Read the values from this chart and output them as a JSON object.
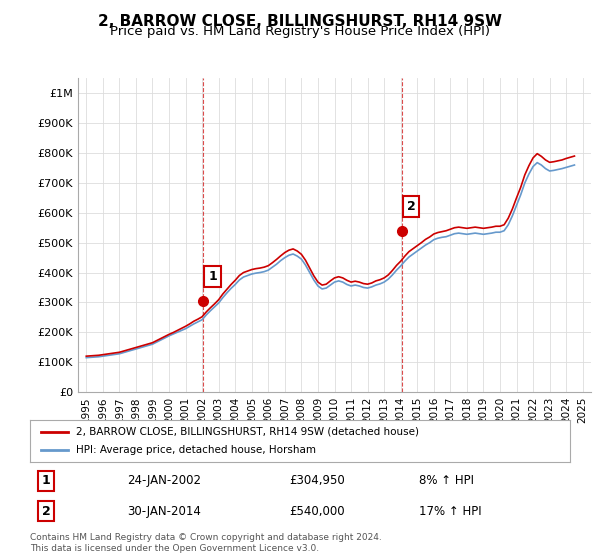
{
  "title": "2, BARROW CLOSE, BILLINGSHURST, RH14 9SW",
  "subtitle": "Price paid vs. HM Land Registry's House Price Index (HPI)",
  "title_fontsize": 11,
  "subtitle_fontsize": 9.5,
  "xlim": [
    1994.5,
    2025.5
  ],
  "ylim": [
    0,
    1050000
  ],
  "yticks": [
    0,
    100000,
    200000,
    300000,
    400000,
    500000,
    600000,
    700000,
    800000,
    900000,
    1000000
  ],
  "ytick_labels": [
    "£0",
    "£100K",
    "£200K",
    "£300K",
    "£400K",
    "£500K",
    "£600K",
    "£700K",
    "£800K",
    "£900K",
    "£1M"
  ],
  "xticks": [
    1995,
    1996,
    1997,
    1998,
    1999,
    2000,
    2001,
    2002,
    2003,
    2004,
    2005,
    2006,
    2007,
    2008,
    2009,
    2010,
    2011,
    2012,
    2013,
    2014,
    2015,
    2016,
    2017,
    2018,
    2019,
    2020,
    2021,
    2022,
    2023,
    2024,
    2025
  ],
  "sale1_x": 2002.07,
  "sale1_y": 304950,
  "sale1_label": "1",
  "sale2_x": 2014.08,
  "sale2_y": 540000,
  "sale2_label": "2",
  "red_line_color": "#cc0000",
  "blue_line_color": "#6699cc",
  "annotation_box_color": "#cc0000",
  "grid_color": "#dddddd",
  "bg_color": "#ffffff",
  "legend_line1": "2, BARROW CLOSE, BILLINGSHURST, RH14 9SW (detached house)",
  "legend_line2": "HPI: Average price, detached house, Horsham",
  "table_row1": [
    "1",
    "24-JAN-2002",
    "£304,950",
    "8% ↑ HPI"
  ],
  "table_row2": [
    "2",
    "30-JAN-2014",
    "£540,000",
    "17% ↑ HPI"
  ],
  "footnote": "Contains HM Land Registry data © Crown copyright and database right 2024.\nThis data is licensed under the Open Government Licence v3.0.",
  "hpi_data_x": [
    1995.0,
    1995.25,
    1995.5,
    1995.75,
    1996.0,
    1996.25,
    1996.5,
    1996.75,
    1997.0,
    1997.25,
    1997.5,
    1997.75,
    1998.0,
    1998.25,
    1998.5,
    1998.75,
    1999.0,
    1999.25,
    1999.5,
    1999.75,
    2000.0,
    2000.25,
    2000.5,
    2000.75,
    2001.0,
    2001.25,
    2001.5,
    2001.75,
    2002.0,
    2002.25,
    2002.5,
    2002.75,
    2003.0,
    2003.25,
    2003.5,
    2003.75,
    2004.0,
    2004.25,
    2004.5,
    2004.75,
    2005.0,
    2005.25,
    2005.5,
    2005.75,
    2006.0,
    2006.25,
    2006.5,
    2006.75,
    2007.0,
    2007.25,
    2007.5,
    2007.75,
    2008.0,
    2008.25,
    2008.5,
    2008.75,
    2009.0,
    2009.25,
    2009.5,
    2009.75,
    2010.0,
    2010.25,
    2010.5,
    2010.75,
    2011.0,
    2011.25,
    2011.5,
    2011.75,
    2012.0,
    2012.25,
    2012.5,
    2012.75,
    2013.0,
    2013.25,
    2013.5,
    2013.75,
    2014.0,
    2014.25,
    2014.5,
    2014.75,
    2015.0,
    2015.25,
    2015.5,
    2015.75,
    2016.0,
    2016.25,
    2016.5,
    2016.75,
    2017.0,
    2017.25,
    2017.5,
    2017.75,
    2018.0,
    2018.25,
    2018.5,
    2018.75,
    2019.0,
    2019.25,
    2019.5,
    2019.75,
    2020.0,
    2020.25,
    2020.5,
    2020.75,
    2021.0,
    2021.25,
    2021.5,
    2021.75,
    2022.0,
    2022.25,
    2022.5,
    2022.75,
    2023.0,
    2023.25,
    2023.5,
    2023.75,
    2024.0,
    2024.25,
    2024.5
  ],
  "hpi_data_y": [
    115000,
    116000,
    117000,
    118000,
    120000,
    122000,
    124000,
    126000,
    128000,
    132000,
    136000,
    140000,
    144000,
    148000,
    152000,
    156000,
    160000,
    167000,
    174000,
    181000,
    188000,
    194000,
    200000,
    206000,
    212000,
    220000,
    228000,
    235000,
    242000,
    258000,
    272000,
    285000,
    298000,
    316000,
    332000,
    347000,
    360000,
    375000,
    385000,
    390000,
    395000,
    398000,
    400000,
    403000,
    408000,
    418000,
    428000,
    440000,
    450000,
    458000,
    462000,
    455000,
    445000,
    425000,
    400000,
    375000,
    355000,
    345000,
    348000,
    358000,
    368000,
    372000,
    368000,
    360000,
    355000,
    358000,
    355000,
    350000,
    348000,
    352000,
    358000,
    362000,
    368000,
    378000,
    392000,
    408000,
    422000,
    438000,
    452000,
    462000,
    472000,
    482000,
    492000,
    500000,
    510000,
    515000,
    518000,
    520000,
    525000,
    530000,
    532000,
    530000,
    528000,
    530000,
    532000,
    530000,
    528000,
    530000,
    532000,
    535000,
    535000,
    540000,
    560000,
    590000,
    625000,
    660000,
    700000,
    730000,
    755000,
    768000,
    760000,
    748000,
    740000,
    742000,
    745000,
    748000,
    752000,
    756000,
    760000
  ],
  "red_data_x": [
    1995.0,
    1995.25,
    1995.5,
    1995.75,
    1996.0,
    1996.25,
    1996.5,
    1996.75,
    1997.0,
    1997.25,
    1997.5,
    1997.75,
    1998.0,
    1998.25,
    1998.5,
    1998.75,
    1999.0,
    1999.25,
    1999.5,
    1999.75,
    2000.0,
    2000.25,
    2000.5,
    2000.75,
    2001.0,
    2001.25,
    2001.5,
    2001.75,
    2002.0,
    2002.25,
    2002.5,
    2002.75,
    2003.0,
    2003.25,
    2003.5,
    2003.75,
    2004.0,
    2004.25,
    2004.5,
    2004.75,
    2005.0,
    2005.25,
    2005.5,
    2005.75,
    2006.0,
    2006.25,
    2006.5,
    2006.75,
    2007.0,
    2007.25,
    2007.5,
    2007.75,
    2008.0,
    2008.25,
    2008.5,
    2008.75,
    2009.0,
    2009.25,
    2009.5,
    2009.75,
    2010.0,
    2010.25,
    2010.5,
    2010.75,
    2011.0,
    2011.25,
    2011.5,
    2011.75,
    2012.0,
    2012.25,
    2012.5,
    2012.75,
    2013.0,
    2013.25,
    2013.5,
    2013.75,
    2014.0,
    2014.25,
    2014.5,
    2014.75,
    2015.0,
    2015.25,
    2015.5,
    2015.75,
    2016.0,
    2016.25,
    2016.5,
    2016.75,
    2017.0,
    2017.25,
    2017.5,
    2017.75,
    2018.0,
    2018.25,
    2018.5,
    2018.75,
    2019.0,
    2019.25,
    2019.5,
    2019.75,
    2020.0,
    2020.25,
    2020.5,
    2020.75,
    2021.0,
    2021.25,
    2021.5,
    2021.75,
    2022.0,
    2022.25,
    2022.5,
    2022.75,
    2023.0,
    2023.25,
    2023.5,
    2023.75,
    2024.0,
    2024.25,
    2024.5
  ],
  "red_data_y": [
    120000,
    121000,
    122000,
    123000,
    125000,
    127000,
    129000,
    131000,
    133000,
    137000,
    141000,
    145000,
    149000,
    153000,
    157000,
    161000,
    165000,
    172000,
    179000,
    186000,
    193000,
    199000,
    206000,
    213000,
    220000,
    228000,
    237000,
    244000,
    252000,
    268000,
    282000,
    295000,
    309000,
    328000,
    344000,
    360000,
    374000,
    390000,
    400000,
    405000,
    410000,
    413000,
    415000,
    418000,
    423000,
    433000,
    444000,
    456000,
    467000,
    475000,
    479000,
    472000,
    461000,
    441000,
    415000,
    389000,
    368000,
    358000,
    361000,
    372000,
    382000,
    386000,
    382000,
    374000,
    368000,
    371000,
    368000,
    363000,
    361000,
    365000,
    372000,
    376000,
    382000,
    392000,
    407000,
    424000,
    438000,
    455000,
    470000,
    480000,
    490000,
    500000,
    511000,
    519000,
    529000,
    534000,
    537000,
    540000,
    545000,
    550000,
    552000,
    550000,
    548000,
    550000,
    552000,
    550000,
    548000,
    550000,
    552000,
    555000,
    555000,
    560000,
    582000,
    613000,
    650000,
    685000,
    727000,
    758000,
    784000,
    798000,
    789000,
    777000,
    769000,
    771000,
    774000,
    777000,
    782000,
    786000,
    790000
  ]
}
